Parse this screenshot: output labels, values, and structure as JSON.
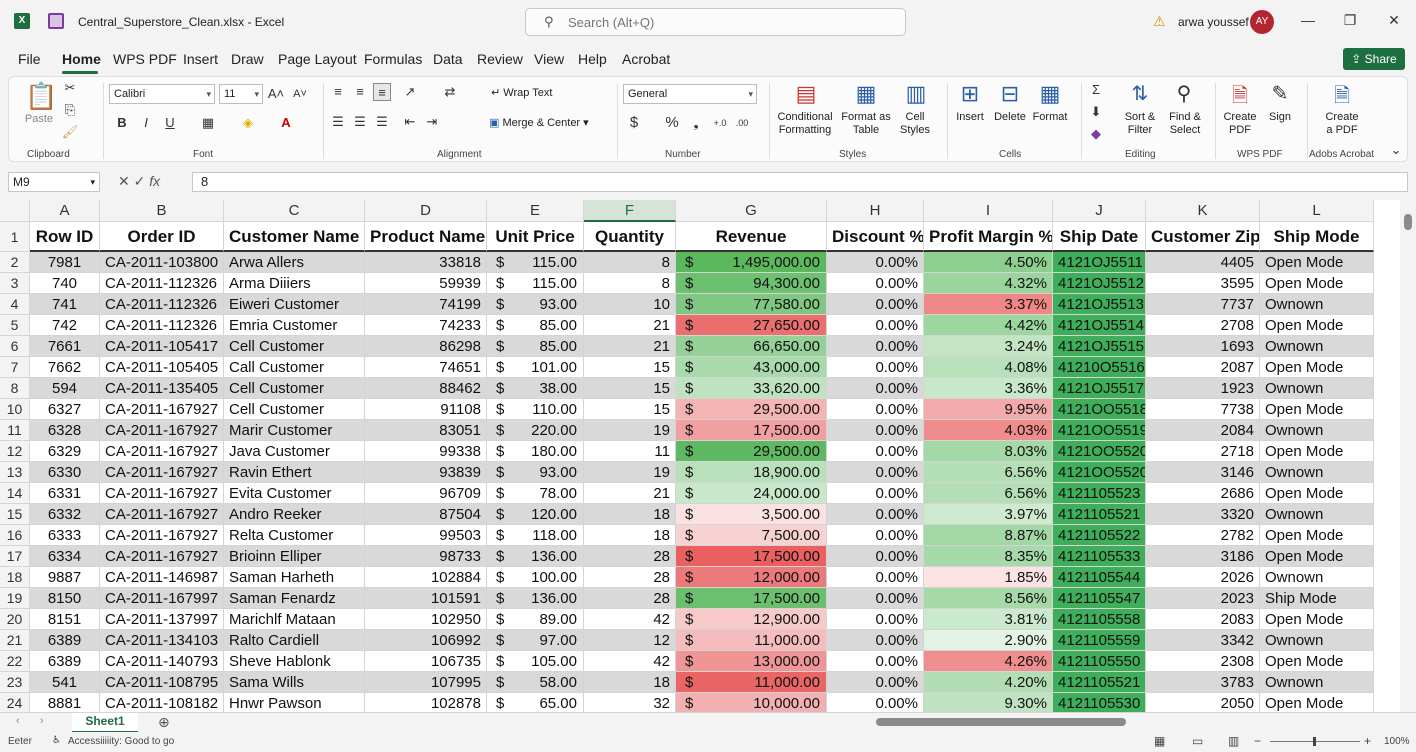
{
  "titlebar": {
    "filename": "Central_Superstore_Clean.xlsx",
    "app": "Excel",
    "search_placeholder": "Search (Alt+Q)",
    "user_name": "arwa youssef",
    "user_initials": "AY"
  },
  "menu": {
    "tabs": [
      "File",
      "Home",
      "WPS PDF",
      "Insert",
      "Draw",
      "Page Layout",
      "Formulas",
      "Data",
      "Review",
      "View",
      "Help",
      "Acrobat"
    ],
    "share_label": "Share"
  },
  "ribbon": {
    "clipboard": {
      "paste": "Paste",
      "label": "Clipboard"
    },
    "font": {
      "name": "Calibri",
      "size": "11",
      "label": "Font"
    },
    "alignment": {
      "wrap": "Wrap Text",
      "merge": "Merge & Center",
      "label": "Alignment"
    },
    "number": {
      "format": "General",
      "label": "Number"
    },
    "styles": {
      "conditional": "Conditional Formatting",
      "format_table": "Format as Table",
      "cell_styles": "Cell Styles",
      "label": "Styles"
    },
    "cells": {
      "insert": "Insert",
      "delete": "Delete",
      "format": "Format",
      "label": "Cells"
    },
    "editing": {
      "sort": "Sort & Filter",
      "find": "Find & Select",
      "label": "Editing"
    },
    "wps": {
      "create": "Create PDF",
      "sign": "Sign",
      "label": "WPS PDF"
    },
    "acrobat": {
      "create": "Create a PDF",
      "label": "Adobs Acrobat"
    }
  },
  "formula_bar": {
    "cell_ref": "M9",
    "value": "8"
  },
  "columns": [
    "A",
    "B",
    "C",
    "D",
    "E",
    "F",
    "G",
    "H",
    "I",
    "J",
    "K",
    "L"
  ],
  "headers": [
    "Row ID",
    "Order ID",
    "Customer Name",
    "Product Name",
    "Unit Price",
    "Quantity",
    "Revenue",
    "Discount %",
    "Profit Margin %",
    "Ship Date",
    "Customer Zip",
    "Ship Mode"
  ],
  "rows": [
    {
      "n": "2",
      "a": "7981",
      "b": "CA-2011-103800",
      "c": "Arwa Allers",
      "d": "33818",
      "e": "115.00",
      "f": "8",
      "g": "1,495,000.00",
      "h": "0.00%",
      "i": "4.50%",
      "j": "4121OJ5511",
      "k": "4405",
      "l": "Open Mode"
    },
    {
      "n": "3",
      "a": "740",
      "b": "CA-2011-112326",
      "c": "Arma Diiiers",
      "d": "59939",
      "e": "115.00",
      "f": "8",
      "g": "94,300.00",
      "h": "0.00%",
      "i": "4.32%",
      "j": "4121OJ5512",
      "k": "3595",
      "l": "Open Mode"
    },
    {
      "n": "4",
      "a": "741",
      "b": "CA-2011-112326",
      "c": "Eiweri Customer",
      "d": "74199",
      "e": "93.00",
      "f": "10",
      "g": "77,580.00",
      "h": "0.00%",
      "i": "3.37%",
      "j": "4121OJ5513",
      "k": "7737",
      "l": "Ownown"
    },
    {
      "n": "5",
      "a": "742",
      "b": "CA-2011-112326",
      "c": "Emria Customer",
      "d": "74233",
      "e": "85.00",
      "f": "21",
      "g": "27,650.00",
      "h": "0.00%",
      "i": "4.42%",
      "j": "4121OJ5514",
      "k": "2708",
      "l": "Open Mode"
    },
    {
      "n": "6",
      "a": "7661",
      "b": "CA-2011-105417",
      "c": "Cell Customer",
      "d": "86298",
      "e": "85.00",
      "f": "21",
      "g": "66,650.00",
      "h": "0.00%",
      "i": "3.24%",
      "j": "4121OJ5515",
      "k": "1693",
      "l": "Ownown"
    },
    {
      "n": "7",
      "a": "7662",
      "b": "CA-2011-105405",
      "c": "Call Customer",
      "d": "74651",
      "e": "101.00",
      "f": "15",
      "g": "43,000.00",
      "h": "0.00%",
      "i": "4.08%",
      "j": "41210O5516",
      "k": "2087",
      "l": "Open Mode"
    },
    {
      "n": "8",
      "a": "594",
      "b": "CA-2011-135405",
      "c": "Cell Customer",
      "d": "88462",
      "e": "38.00",
      "f": "15",
      "g": "33,620.00",
      "h": "0.00%",
      "i": "3.36%",
      "j": "4121OJ5517",
      "k": "1923",
      "l": "Ownown"
    },
    {
      "n": "10",
      "a": "6327",
      "b": "CA-2011-167927",
      "c": "Cell Customer",
      "d": "91108",
      "e": "110.00",
      "f": "15",
      "g": "29,500.00",
      "h": "0.00%",
      "i": "9.95%",
      "j": "4121OO5518",
      "k": "7738",
      "l": "Open Mode"
    },
    {
      "n": "11",
      "a": "6328",
      "b": "CA-2011-167927",
      "c": "Marir Customer",
      "d": "83051",
      "e": "220.00",
      "f": "19",
      "g": "17,500.00",
      "h": "0.00%",
      "i": "4.03%",
      "j": "4121OO5519",
      "k": "2084",
      "l": "Ownown"
    },
    {
      "n": "12",
      "a": "6329",
      "b": "CA-2011-167927",
      "c": "Java Customer",
      "d": "99338",
      "e": "180.00",
      "f": "11",
      "g": "29,500.00",
      "h": "0.00%",
      "i": "8.03%",
      "j": "4121OO5520",
      "k": "2718",
      "l": "Open Mode"
    },
    {
      "n": "13",
      "a": "6330",
      "b": "CA-2011-167927",
      "c": "Ravin Ethert",
      "d": "93839",
      "e": "93.00",
      "f": "19",
      "g": "18,900.00",
      "h": "0.00%",
      "i": "6.56%",
      "j": "4121OO5520",
      "k": "3146",
      "l": "Ownown"
    },
    {
      "n": "14",
      "a": "6331",
      "b": "CA-2011-167927",
      "c": "Evita Customer",
      "d": "96709",
      "e": "78.00",
      "f": "21",
      "g": "24,000.00",
      "h": "0.00%",
      "i": "6.56%",
      "j": "4121105523",
      "k": "2686",
      "l": "Open Mode"
    },
    {
      "n": "15",
      "a": "6332",
      "b": "CA-2011-167927",
      "c": "Andro Reeker",
      "d": "87504",
      "e": "120.00",
      "f": "18",
      "g": "3,500.00",
      "h": "0.00%",
      "i": "3.97%",
      "j": "4121105521",
      "k": "3320",
      "l": "Ownown"
    },
    {
      "n": "16",
      "a": "6333",
      "b": "CA-2011-167927",
      "c": "Relta Customer",
      "d": "99503",
      "e": "118.00",
      "f": "18",
      "g": "7,500.00",
      "h": "0.00%",
      "i": "8.87%",
      "j": "4121105522",
      "k": "2782",
      "l": "Open Mode"
    },
    {
      "n": "17",
      "a": "6334",
      "b": "CA-2011-167927",
      "c": "Brioinn Elliper",
      "d": "98733",
      "e": "136.00",
      "f": "28",
      "g": "17,500.00",
      "h": "0.00%",
      "i": "8.35%",
      "j": "4121105533",
      "k": "3186",
      "l": "Open Mode"
    },
    {
      "n": "18",
      "a": "9887",
      "b": "CA-2011-146987",
      "c": "Saman Harheth",
      "d": "102884",
      "e": "100.00",
      "f": "28",
      "g": "12,000.00",
      "h": "0.00%",
      "i": "1.85%",
      "j": "4121105544",
      "k": "2026",
      "l": "Ownown"
    },
    {
      "n": "19",
      "a": "8150",
      "b": "CA-2011-167997",
      "c": "Saman Fenardz",
      "d": "101591",
      "e": "136.00",
      "f": "28",
      "g": "17,500.00",
      "h": "0.00%",
      "i": "8.56%",
      "j": "4121105547",
      "k": "2023",
      "l": "Ship Mode"
    },
    {
      "n": "20",
      "a": "8151",
      "b": "CA-2011-137997",
      "c": "Marichlf Mataan",
      "d": "102950",
      "e": "89.00",
      "f": "42",
      "g": "12,900.00",
      "h": "0.00%",
      "i": "3.81%",
      "j": "4121105558",
      "k": "2083",
      "l": "Open Mode"
    },
    {
      "n": "21",
      "a": "6389",
      "b": "CA-2011-134103",
      "c": "Ralto Cardiell",
      "d": "106992",
      "e": "97.00",
      "f": "12",
      "g": "11,000.00",
      "h": "0.00%",
      "i": "2.90%",
      "j": "4121105559",
      "k": "3342",
      "l": "Ownown"
    },
    {
      "n": "22",
      "a": "6389",
      "b": "CA-2011-140793",
      "c": "Sheve Hablonk",
      "d": "106735",
      "e": "105.00",
      "f": "42",
      "g": "13,000.00",
      "h": "0.00%",
      "i": "4.26%",
      "j": "4121105550",
      "k": "2308",
      "l": "Open Mode"
    },
    {
      "n": "23",
      "a": "541",
      "b": "CA-2011-108795",
      "c": "Sama Wills",
      "d": "107995",
      "e": "58.00",
      "f": "18",
      "g": "11,000.00",
      "h": "0.00%",
      "i": "4.20%",
      "j": "4121105521",
      "k": "3783",
      "l": "Ownown"
    },
    {
      "n": "24",
      "a": "8881",
      "b": "CA-2011-108182",
      "c": "Hnwr Pawson",
      "d": "102878",
      "e": "65.00",
      "f": "32",
      "g": "10,000.00",
      "h": "0.00%",
      "i": "9.30%",
      "j": "4121105530",
      "k": "2050",
      "l": "Open Mode"
    }
  ],
  "revenue_colors": [
    "#5cb85c",
    "#6dc070",
    "#7fc783",
    "#ea6f6f",
    "#94d097",
    "#a9daab",
    "#bfe3c0",
    "#f4b4b4",
    "#f0a0a0",
    "#5fb962",
    "#b8e0ba",
    "#c9e8ca",
    "#fbe2e2",
    "#f8d2d2",
    "#ea5f5f",
    "#ec7a7a",
    "#6cbf6f",
    "#f7c9c9",
    "#f4bcbc",
    "#ef9595",
    "#ea6666",
    "#f2b0b0"
  ],
  "margin_colors": [
    "#8dcf90",
    "#9bd59d",
    "#ef8787",
    "#9dd69f",
    "#c3e5c4",
    "#b8e0ba",
    "#c8e8c9",
    "#f3aaaa",
    "#ef8d8d",
    "#a5d8a7",
    "#b4deb6",
    "#b4deb6",
    "#cfeacf",
    "#a3d7a5",
    "#a8d9aa",
    "#fbe3e3",
    "#a6d8a8",
    "#cbe9cc",
    "#e3f3e3",
    "#ef8e8e",
    "#b3ddb4",
    "#bfe2c0"
  ],
  "sheet": {
    "tab": "Sheet1"
  },
  "status": {
    "mode": "Eeter",
    "accessibility": "Accessiiiiity: Good to go",
    "zoom": "100%"
  }
}
